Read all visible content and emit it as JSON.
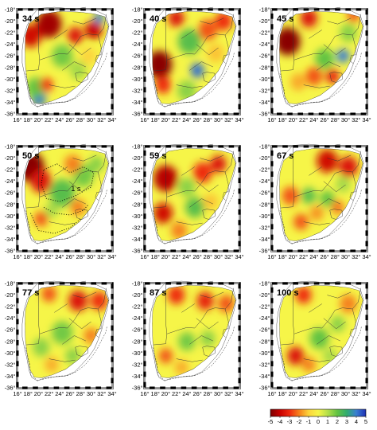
{
  "figure": {
    "panels": [
      {
        "label": "34 s",
        "row": 0,
        "col": 0,
        "anomalies": [
          {
            "lon": 20.0,
            "lat": -33.3,
            "v": 4.2,
            "r": 1.4
          },
          {
            "lon": 19.5,
            "lat": -31.5,
            "v": 2.0,
            "r": 1.8
          },
          {
            "lon": 22.0,
            "lat": -20.5,
            "v": -4.5,
            "r": 2.4
          },
          {
            "lon": 18.5,
            "lat": -22.5,
            "v": -3.8,
            "r": 2.0
          },
          {
            "lon": 27.0,
            "lat": -22.5,
            "v": -3.5,
            "r": 1.5
          },
          {
            "lon": 30.5,
            "lat": -21.5,
            "v": -4.0,
            "r": 1.6
          },
          {
            "lon": 24.5,
            "lat": -26.0,
            "v": 1.8,
            "r": 2.0
          },
          {
            "lon": 21.5,
            "lat": -31.0,
            "v": -3.0,
            "r": 1.2
          },
          {
            "lon": 27.5,
            "lat": -28.5,
            "v": 1.2,
            "r": 1.6
          },
          {
            "lon": 31.5,
            "lat": -19.5,
            "v": 4.0,
            "r": 1.0
          },
          {
            "lon": 29.5,
            "lat": -26.0,
            "v": -1.0,
            "r": 1.5
          }
        ]
      },
      {
        "label": "40 s",
        "row": 0,
        "col": 1,
        "anomalies": [
          {
            "lon": 18.8,
            "lat": -27.5,
            "v": -4.8,
            "r": 2.4
          },
          {
            "lon": 19.5,
            "lat": -31.0,
            "v": -3.0,
            "r": 1.5
          },
          {
            "lon": 26.0,
            "lat": -28.5,
            "v": 4.2,
            "r": 1.3
          },
          {
            "lon": 24.5,
            "lat": -23.5,
            "v": 2.2,
            "r": 2.2
          },
          {
            "lon": 28.0,
            "lat": -21.5,
            "v": -2.5,
            "r": 1.8
          },
          {
            "lon": 31.0,
            "lat": -20.0,
            "v": -3.0,
            "r": 1.6
          },
          {
            "lon": 29.5,
            "lat": -25.5,
            "v": -1.2,
            "r": 1.6
          },
          {
            "lon": 22.0,
            "lat": -19.5,
            "v": -3.5,
            "r": 1.5
          },
          {
            "lon": 24.0,
            "lat": -32.0,
            "v": 1.5,
            "r": 1.8
          }
        ]
      },
      {
        "label": "45 s",
        "row": 0,
        "col": 2,
        "anomalies": [
          {
            "lon": 19.0,
            "lat": -23.5,
            "v": -4.8,
            "r": 2.4
          },
          {
            "lon": 23.0,
            "lat": -19.5,
            "v": -3.5,
            "r": 1.6
          },
          {
            "lon": 29.5,
            "lat": -26.0,
            "v": 4.0,
            "r": 1.2
          },
          {
            "lon": 26.0,
            "lat": -26.5,
            "v": 2.0,
            "r": 1.8
          },
          {
            "lon": 24.0,
            "lat": -29.5,
            "v": -2.5,
            "r": 1.6
          },
          {
            "lon": 27.5,
            "lat": -29.5,
            "v": -3.2,
            "r": 1.3
          },
          {
            "lon": 30.5,
            "lat": -22.0,
            "v": 1.5,
            "r": 1.6
          },
          {
            "lon": 21.0,
            "lat": -30.5,
            "v": -1.5,
            "r": 1.5
          },
          {
            "lon": 31.5,
            "lat": -19.0,
            "v": -2.5,
            "r": 1.2
          }
        ]
      },
      {
        "label": "50 s",
        "row": 1,
        "col": 0,
        "anomalies": [
          {
            "lon": 18.5,
            "lat": -21.5,
            "v": -4.8,
            "r": 2.6
          },
          {
            "lon": 20.5,
            "lat": -24.0,
            "v": -3.5,
            "r": 2.0
          },
          {
            "lon": 24.5,
            "lat": -26.0,
            "v": 2.2,
            "r": 2.4
          },
          {
            "lon": 28.5,
            "lat": -23.0,
            "v": 1.8,
            "r": 2.0
          },
          {
            "lon": 26.5,
            "lat": -21.0,
            "v": -2.0,
            "r": 1.6
          },
          {
            "lon": 31.0,
            "lat": -21.0,
            "v": 1.5,
            "r": 1.4
          },
          {
            "lon": 27.5,
            "lat": -28.5,
            "v": -2.0,
            "r": 1.4
          },
          {
            "lon": 20.5,
            "lat": -30.5,
            "v": -2.5,
            "r": 1.3
          },
          {
            "lon": 22.5,
            "lat": -29.0,
            "v": 1.2,
            "r": 1.3
          }
        ]
      },
      {
        "label": "59 s",
        "row": 1,
        "col": 1,
        "anomalies": [
          {
            "lon": 20.0,
            "lat": -23.5,
            "v": -4.2,
            "r": 2.3
          },
          {
            "lon": 19.5,
            "lat": -29.5,
            "v": -3.8,
            "r": 1.8
          },
          {
            "lon": 25.5,
            "lat": -28.5,
            "v": 2.2,
            "r": 1.8
          },
          {
            "lon": 27.0,
            "lat": -22.5,
            "v": -3.0,
            "r": 1.8
          },
          {
            "lon": 30.0,
            "lat": -21.0,
            "v": -3.5,
            "r": 1.5
          },
          {
            "lon": 24.0,
            "lat": -25.0,
            "v": 1.5,
            "r": 1.6
          },
          {
            "lon": 22.5,
            "lat": -32.5,
            "v": -2.0,
            "r": 1.5
          },
          {
            "lon": 28.5,
            "lat": -27.5,
            "v": -1.2,
            "r": 1.4
          }
        ]
      },
      {
        "label": "67 s",
        "row": 1,
        "col": 2,
        "anomalies": [
          {
            "lon": 26.5,
            "lat": -20.5,
            "v": -3.8,
            "r": 2.0
          },
          {
            "lon": 30.5,
            "lat": -21.5,
            "v": -3.5,
            "r": 1.8
          },
          {
            "lon": 19.5,
            "lat": -26.5,
            "v": -2.5,
            "r": 1.6
          },
          {
            "lon": 23.0,
            "lat": -26.5,
            "v": 2.2,
            "r": 1.4
          },
          {
            "lon": 26.5,
            "lat": -27.0,
            "v": 2.0,
            "r": 1.4
          },
          {
            "lon": 21.5,
            "lat": -31.0,
            "v": -2.5,
            "r": 1.4
          },
          {
            "lon": 24.5,
            "lat": -29.5,
            "v": -1.8,
            "r": 1.3
          },
          {
            "lon": 29.5,
            "lat": -24.5,
            "v": 1.2,
            "r": 1.4
          },
          {
            "lon": 28.5,
            "lat": -28.5,
            "v": -2.2,
            "r": 1.2
          }
        ]
      },
      {
        "label": "77 s",
        "row": 2,
        "col": 0,
        "anomalies": [
          {
            "lon": 27.5,
            "lat": -21.0,
            "v": -3.5,
            "r": 1.8
          },
          {
            "lon": 31.5,
            "lat": -21.0,
            "v": -3.0,
            "r": 1.6
          },
          {
            "lon": 22.0,
            "lat": -19.8,
            "v": -2.5,
            "r": 1.4
          },
          {
            "lon": 24.5,
            "lat": -26.5,
            "v": 1.8,
            "r": 2.0
          },
          {
            "lon": 20.5,
            "lat": -29.0,
            "v": 1.5,
            "r": 1.6
          },
          {
            "lon": 26.5,
            "lat": -30.5,
            "v": 1.5,
            "r": 1.4
          },
          {
            "lon": 30.0,
            "lat": -27.0,
            "v": -2.0,
            "r": 1.4
          },
          {
            "lon": 22.5,
            "lat": -32.0,
            "v": -1.5,
            "r": 1.3
          }
        ]
      },
      {
        "label": "87 s",
        "row": 2,
        "col": 1,
        "anomalies": [
          {
            "lon": 22.0,
            "lat": -20.0,
            "v": -3.0,
            "r": 1.6
          },
          {
            "lon": 27.5,
            "lat": -21.0,
            "v": -3.2,
            "r": 1.6
          },
          {
            "lon": 31.5,
            "lat": -21.5,
            "v": -2.5,
            "r": 1.5
          },
          {
            "lon": 24.0,
            "lat": -28.0,
            "v": 1.8,
            "r": 1.6
          },
          {
            "lon": 20.0,
            "lat": -30.5,
            "v": -2.5,
            "r": 1.3
          },
          {
            "lon": 28.0,
            "lat": -27.5,
            "v": 1.5,
            "r": 1.4
          },
          {
            "lon": 23.0,
            "lat": -32.5,
            "v": -1.5,
            "r": 1.3
          }
        ]
      },
      {
        "label": "100 s",
        "row": 2,
        "col": 2,
        "anomalies": [
          {
            "lon": 22.0,
            "lat": -20.0,
            "v": -3.0,
            "r": 1.5
          },
          {
            "lon": 30.5,
            "lat": -21.5,
            "v": -2.0,
            "r": 1.6
          },
          {
            "lon": 20.5,
            "lat": -30.5,
            "v": -3.5,
            "r": 1.6
          },
          {
            "lon": 25.0,
            "lat": -27.5,
            "v": 2.0,
            "r": 1.8
          },
          {
            "lon": 28.5,
            "lat": -25.0,
            "v": 1.5,
            "r": 1.4
          },
          {
            "lon": 23.0,
            "lat": -32.0,
            "v": -2.0,
            "r": 1.3
          },
          {
            "lon": 27.0,
            "lat": -30.5,
            "v": 1.2,
            "r": 1.3
          }
        ]
      }
    ],
    "contour_label": "1 s",
    "lon_ticks": [
      "16°",
      "18°",
      "20°",
      "22°",
      "24°",
      "26°",
      "28°",
      "30°",
      "32°",
      "34°"
    ],
    "lat_ticks": [
      "-18°",
      "-20°",
      "-22°",
      "-24°",
      "-26°",
      "-28°",
      "-30°",
      "-32°",
      "-34°",
      "-36°"
    ],
    "lon_range": [
      16,
      34
    ],
    "lat_range": [
      -36,
      -18
    ]
  },
  "colorscale": {
    "labels": [
      "-5",
      "-4",
      "-3",
      "-2",
      "-1",
      "0",
      "1",
      "2",
      "3",
      "4",
      "5"
    ],
    "stops": [
      {
        "v": -5,
        "color": "#7a0000"
      },
      {
        "v": -4,
        "color": "#c80000"
      },
      {
        "v": -3,
        "color": "#ee2a10"
      },
      {
        "v": -2,
        "color": "#f5801c"
      },
      {
        "v": -1,
        "color": "#fcd43c"
      },
      {
        "v": 0,
        "color": "#f6f548"
      },
      {
        "v": 1,
        "color": "#b4df4a"
      },
      {
        "v": 2,
        "color": "#62c342"
      },
      {
        "v": 3,
        "color": "#31ac6e"
      },
      {
        "v": 4,
        "color": "#3a7fd2"
      },
      {
        "v": 5,
        "color": "#1e2fb5"
      }
    ]
  }
}
